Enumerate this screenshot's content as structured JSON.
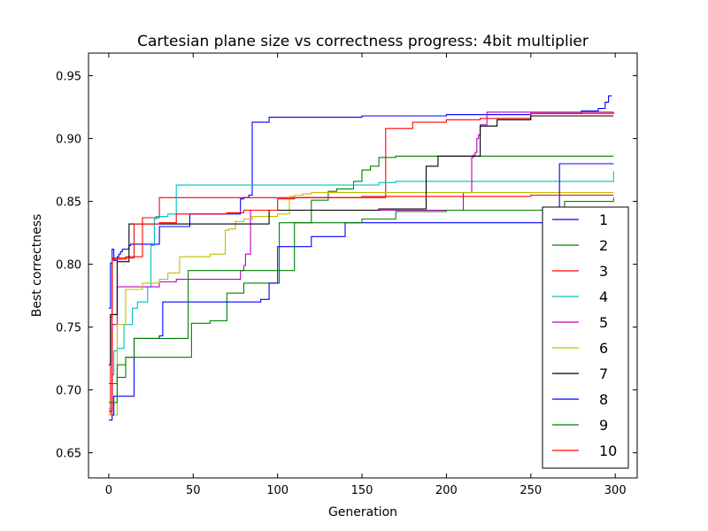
{
  "chart_data": {
    "type": "line",
    "title": "Cartesian plane size vs correctness progress: 4bit multiplier",
    "xlabel": "Generation",
    "ylabel": "Best correctness",
    "xlim": [
      -12,
      313
    ],
    "ylim": [
      0.63,
      0.968
    ],
    "xticks": [
      0,
      50,
      100,
      150,
      200,
      250,
      300
    ],
    "xtick_labels": [
      "0",
      "50",
      "100",
      "150",
      "200",
      "250",
      "300"
    ],
    "yticks": [
      0.65,
      0.7,
      0.75,
      0.8,
      0.85,
      0.9,
      0.95
    ],
    "ytick_labels": [
      "0.65",
      "0.70",
      "0.75",
      "0.80",
      "0.85",
      "0.90",
      "0.95"
    ],
    "grid": false,
    "legend_position": "lower-right",
    "series": [
      {
        "name": "1",
        "color": "#0000ff",
        "x": [
          0,
          1,
          2,
          3,
          5,
          6,
          7,
          8,
          12,
          13,
          14,
          15,
          17,
          30,
          48,
          78,
          80,
          81,
          83,
          85,
          90,
          95,
          100,
          120,
          150,
          200,
          250,
          280,
          290,
          294,
          296,
          298
        ],
        "y": [
          0.765,
          0.801,
          0.812,
          0.803,
          0.806,
          0.808,
          0.81,
          0.812,
          0.815,
          0.816,
          0.816,
          0.816,
          0.816,
          0.83,
          0.84,
          0.852,
          0.853,
          0.853,
          0.855,
          0.913,
          0.913,
          0.917,
          0.917,
          0.917,
          0.918,
          0.919,
          0.92,
          0.922,
          0.924,
          0.929,
          0.934,
          0.934
        ]
      },
      {
        "name": "2",
        "color": "#008000",
        "x": [
          0,
          5,
          10,
          40,
          49,
          55,
          60,
          65,
          70,
          80,
          90,
          101,
          110,
          111,
          119,
          120,
          130,
          135,
          145,
          150,
          155,
          160,
          170,
          200,
          250,
          299
        ],
        "y": [
          0.705,
          0.71,
          0.726,
          0.726,
          0.753,
          0.753,
          0.755,
          0.755,
          0.777,
          0.785,
          0.785,
          0.833,
          0.833,
          0.833,
          0.833,
          0.851,
          0.858,
          0.86,
          0.866,
          0.875,
          0.878,
          0.885,
          0.886,
          0.886,
          0.886,
          0.886
        ]
      },
      {
        "name": "3",
        "color": "#ff0000",
        "x": [
          0,
          1,
          2,
          10,
          15,
          20,
          30,
          50,
          100,
          150,
          160,
          164,
          165,
          180,
          200,
          220,
          250,
          299
        ],
        "y": [
          0.68,
          0.758,
          0.804,
          0.806,
          0.806,
          0.837,
          0.853,
          0.853,
          0.853,
          0.853,
          0.853,
          0.908,
          0.908,
          0.913,
          0.915,
          0.916,
          0.92,
          0.921
        ]
      },
      {
        "name": "4",
        "color": "#00bfbf",
        "x": [
          0,
          2,
          3,
          5,
          9,
          14,
          17,
          23,
          25,
          27,
          28,
          30,
          35,
          40,
          60,
          80,
          100,
          150,
          160,
          170,
          200,
          250,
          290,
          298,
          299
        ],
        "y": [
          0.685,
          0.712,
          0.731,
          0.733,
          0.752,
          0.765,
          0.77,
          0.782,
          0.815,
          0.836,
          0.838,
          0.838,
          0.84,
          0.863,
          0.863,
          0.863,
          0.863,
          0.863,
          0.865,
          0.866,
          0.866,
          0.866,
          0.866,
          0.866,
          0.874
        ]
      },
      {
        "name": "5",
        "color": "#bf00bf",
        "x": [
          0,
          2,
          5,
          8,
          15,
          20,
          30,
          40,
          50,
          60,
          70,
          78,
          80,
          81,
          84,
          85,
          87,
          90,
          100,
          110,
          120,
          130,
          150,
          170,
          200,
          210,
          215,
          216,
          217,
          218,
          219,
          220,
          224,
          230,
          250,
          270,
          299
        ],
        "y": [
          0.68,
          0.752,
          0.782,
          0.782,
          0.782,
          0.782,
          0.786,
          0.788,
          0.788,
          0.788,
          0.788,
          0.795,
          0.799,
          0.808,
          0.843,
          0.843,
          0.843,
          0.843,
          0.843,
          0.843,
          0.843,
          0.843,
          0.843,
          0.843,
          0.843,
          0.857,
          0.885,
          0.887,
          0.889,
          0.9,
          0.903,
          0.911,
          0.921,
          0.921,
          0.921,
          0.921,
          0.921
        ]
      },
      {
        "name": "6",
        "color": "#bfbf00",
        "x": [
          0,
          5,
          10,
          20,
          30,
          35,
          42,
          55,
          60,
          69,
          71,
          75,
          80,
          85,
          100,
          107,
          110,
          115,
          120,
          150,
          200,
          250,
          299
        ],
        "y": [
          0.68,
          0.752,
          0.78,
          0.785,
          0.788,
          0.793,
          0.806,
          0.806,
          0.808,
          0.827,
          0.828,
          0.834,
          0.836,
          0.838,
          0.84,
          0.854,
          0.855,
          0.856,
          0.857,
          0.857,
          0.857,
          0.857,
          0.857
        ]
      },
      {
        "name": "7",
        "color": "#000000",
        "x": [
          0,
          1,
          5,
          8,
          12,
          15,
          30,
          50,
          80,
          95,
          100,
          150,
          160,
          170,
          188,
          190,
          195,
          200,
          205,
          214,
          220,
          230,
          250,
          299
        ],
        "y": [
          0.72,
          0.76,
          0.802,
          0.802,
          0.832,
          0.832,
          0.832,
          0.832,
          0.832,
          0.843,
          0.843,
          0.843,
          0.844,
          0.844,
          0.878,
          0.878,
          0.886,
          0.886,
          0.886,
          0.886,
          0.91,
          0.915,
          0.918,
          0.918
        ]
      },
      {
        "name": "8",
        "color": "#0000ff",
        "x": [
          0,
          2,
          3,
          5,
          10,
          15,
          30,
          32,
          40,
          50,
          80,
          85,
          90,
          95,
          100,
          110,
          120,
          130,
          140,
          150,
          200,
          250,
          266,
          267,
          299
        ],
        "y": [
          0.676,
          0.68,
          0.695,
          0.695,
          0.695,
          0.741,
          0.743,
          0.77,
          0.77,
          0.77,
          0.77,
          0.77,
          0.772,
          0.785,
          0.814,
          0.814,
          0.822,
          0.822,
          0.833,
          0.833,
          0.833,
          0.833,
          0.833,
          0.88,
          0.88
        ]
      },
      {
        "name": "9",
        "color": "#008000",
        "x": [
          0,
          5,
          10,
          15,
          30,
          45,
          47,
          50,
          60,
          70,
          80,
          90,
          95,
          100,
          110,
          115,
          120,
          130,
          150,
          170,
          200,
          250,
          265,
          270,
          299
        ],
        "y": [
          0.69,
          0.72,
          0.726,
          0.741,
          0.741,
          0.741,
          0.795,
          0.795,
          0.795,
          0.795,
          0.795,
          0.795,
          0.795,
          0.795,
          0.833,
          0.833,
          0.833,
          0.833,
          0.836,
          0.842,
          0.843,
          0.843,
          0.845,
          0.85,
          0.853
        ]
      },
      {
        "name": "10",
        "color": "#ff0000",
        "x": [
          0,
          2,
          4,
          8,
          15,
          20,
          30,
          40,
          50,
          60,
          70,
          80,
          100,
          110,
          120,
          130,
          150,
          200,
          250,
          299
        ],
        "y": [
          0.683,
          0.805,
          0.805,
          0.805,
          0.832,
          0.832,
          0.833,
          0.84,
          0.84,
          0.84,
          0.841,
          0.843,
          0.852,
          0.853,
          0.853,
          0.853,
          0.854,
          0.854,
          0.855,
          0.855
        ]
      }
    ]
  }
}
